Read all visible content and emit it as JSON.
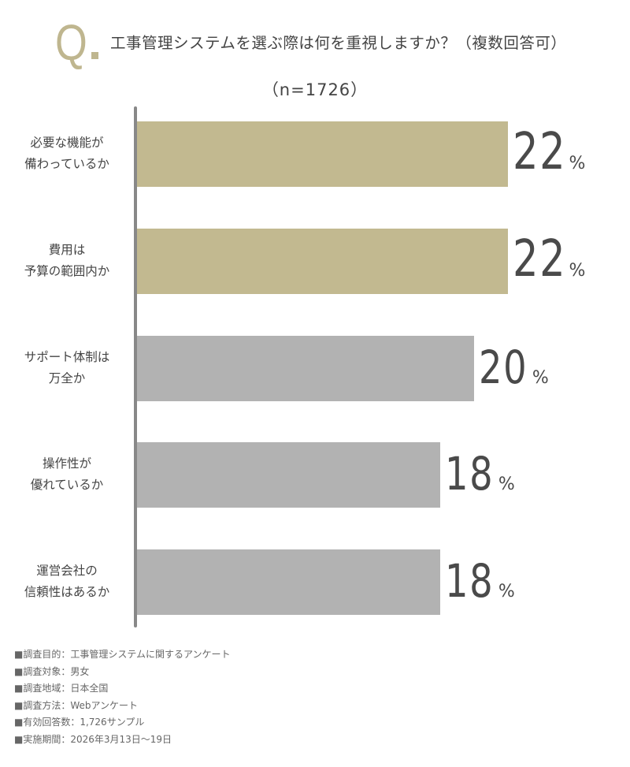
{
  "header": {
    "q_mark": "Q",
    "title": "工事管理システムを選ぶ際は何を重視しますか？（複数回答可）",
    "sample_size": "（n=1726）"
  },
  "colors": {
    "accent": "#bfb68f",
    "bar_highlight": "#c2b990",
    "bar_default": "#b2b2b2",
    "axis": "#888888",
    "text": "#444444"
  },
  "chart_data": {
    "type": "bar",
    "orientation": "horizontal",
    "title": "工事管理システムを選ぶ際は何を重視しますか？（複数回答可）",
    "subtitle": "（n=1726）",
    "categories": [
      "必要な機能が備わっているか",
      "費用は予算の範囲内か",
      "サポート体制は万全か",
      "操作性が優れているか",
      "運営会社の信頼性はあるか"
    ],
    "category_lines": [
      [
        "必要な機能が",
        "備わっているか"
      ],
      [
        "費用は",
        "予算の範囲内か"
      ],
      [
        "サポート体制は",
        "万全か"
      ],
      [
        "操作性が",
        "優れているか"
      ],
      [
        "運営会社の",
        "信頼性はあるか"
      ]
    ],
    "values": [
      22,
      22,
      20,
      18,
      18
    ],
    "unit": "%",
    "highlighted": [
      true,
      true,
      false,
      false,
      false
    ],
    "xlabel": "",
    "ylabel": "",
    "grid": false,
    "legend": null
  },
  "footer": {
    "items": [
      "■調査目的：工事管理システムに関するアンケート",
      "■調査対象：男女",
      "■調査地域：日本全国",
      "■調査方法：Webアンケート",
      "■有効回答数：1,726サンプル",
      "■実施期間：2026年3月13日〜19日"
    ]
  }
}
